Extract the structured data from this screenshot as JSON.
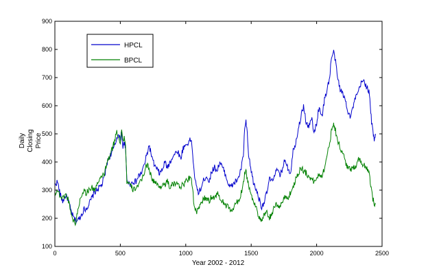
{
  "chart_data": {
    "type": "line",
    "xlabel": "Year 2002 - 2012",
    "ylabel_lines": [
      "Daily",
      "Closing",
      "Price"
    ],
    "xlim": [
      0,
      2500
    ],
    "ylim": [
      100,
      900
    ],
    "xticks": [
      0,
      500,
      1000,
      1500,
      2000,
      2500
    ],
    "yticks": [
      100,
      200,
      300,
      400,
      500,
      600,
      700,
      800,
      900
    ],
    "grid": false,
    "legend_position": "top-left",
    "series": [
      {
        "name": "HPCL",
        "color": "#0000cc",
        "points": [
          [
            0,
            320
          ],
          [
            20,
            330
          ],
          [
            40,
            285
          ],
          [
            60,
            260
          ],
          [
            80,
            280
          ],
          [
            100,
            270
          ],
          [
            120,
            230
          ],
          [
            140,
            205
          ],
          [
            160,
            190
          ],
          [
            180,
            195
          ],
          [
            200,
            210
          ],
          [
            220,
            230
          ],
          [
            240,
            235
          ],
          [
            260,
            250
          ],
          [
            280,
            270
          ],
          [
            300,
            290
          ],
          [
            320,
            300
          ],
          [
            340,
            310
          ],
          [
            360,
            320
          ],
          [
            380,
            350
          ],
          [
            400,
            400
          ],
          [
            420,
            420
          ],
          [
            440,
            440
          ],
          [
            460,
            460
          ],
          [
            470,
            480
          ],
          [
            480,
            500
          ],
          [
            500,
            480
          ],
          [
            510,
            510
          ],
          [
            520,
            450
          ],
          [
            530,
            470
          ],
          [
            540,
            440
          ],
          [
            550,
            340
          ],
          [
            570,
            320
          ],
          [
            600,
            330
          ],
          [
            620,
            330
          ],
          [
            640,
            350
          ],
          [
            660,
            360
          ],
          [
            680,
            385
          ],
          [
            700,
            420
          ],
          [
            720,
            460
          ],
          [
            730,
            440
          ],
          [
            750,
            400
          ],
          [
            770,
            380
          ],
          [
            800,
            360
          ],
          [
            820,
            370
          ],
          [
            840,
            400
          ],
          [
            860,
            380
          ],
          [
            880,
            400
          ],
          [
            900,
            420
          ],
          [
            920,
            430
          ],
          [
            940,
            440
          ],
          [
            960,
            410
          ],
          [
            980,
            450
          ],
          [
            1000,
            460
          ],
          [
            1020,
            470
          ],
          [
            1040,
            480
          ],
          [
            1050,
            450
          ],
          [
            1060,
            380
          ],
          [
            1080,
            310
          ],
          [
            1100,
            290
          ],
          [
            1120,
            310
          ],
          [
            1140,
            340
          ],
          [
            1160,
            350
          ],
          [
            1180,
            330
          ],
          [
            1200,
            370
          ],
          [
            1220,
            380
          ],
          [
            1240,
            370
          ],
          [
            1260,
            400
          ],
          [
            1280,
            380
          ],
          [
            1300,
            360
          ],
          [
            1320,
            330
          ],
          [
            1340,
            310
          ],
          [
            1360,
            320
          ],
          [
            1380,
            330
          ],
          [
            1400,
            340
          ],
          [
            1420,
            370
          ],
          [
            1440,
            420
          ],
          [
            1450,
            520
          ],
          [
            1460,
            540
          ],
          [
            1470,
            500
          ],
          [
            1480,
            420
          ],
          [
            1500,
            370
          ],
          [
            1520,
            320
          ],
          [
            1540,
            300
          ],
          [
            1560,
            270
          ],
          [
            1580,
            240
          ],
          [
            1600,
            260
          ],
          [
            1620,
            290
          ],
          [
            1640,
            340
          ],
          [
            1660,
            330
          ],
          [
            1680,
            360
          ],
          [
            1700,
            370
          ],
          [
            1720,
            350
          ],
          [
            1740,
            380
          ],
          [
            1760,
            410
          ],
          [
            1780,
            380
          ],
          [
            1800,
            360
          ],
          [
            1820,
            440
          ],
          [
            1840,
            470
          ],
          [
            1860,
            520
          ],
          [
            1880,
            560
          ],
          [
            1900,
            600
          ],
          [
            1920,
            540
          ],
          [
            1940,
            520
          ],
          [
            1960,
            560
          ],
          [
            1980,
            500
          ],
          [
            2000,
            540
          ],
          [
            2020,
            600
          ],
          [
            2040,
            560
          ],
          [
            2060,
            620
          ],
          [
            2080,
            660
          ],
          [
            2100,
            700
          ],
          [
            2110,
            760
          ],
          [
            2120,
            780
          ],
          [
            2130,
            790
          ],
          [
            2140,
            770
          ],
          [
            2160,
            700
          ],
          [
            2180,
            660
          ],
          [
            2200,
            640
          ],
          [
            2220,
            620
          ],
          [
            2240,
            580
          ],
          [
            2260,
            560
          ],
          [
            2280,
            600
          ],
          [
            2300,
            630
          ],
          [
            2320,
            650
          ],
          [
            2340,
            680
          ],
          [
            2360,
            690
          ],
          [
            2380,
            670
          ],
          [
            2400,
            650
          ],
          [
            2410,
            600
          ],
          [
            2420,
            540
          ],
          [
            2430,
            510
          ],
          [
            2440,
            480
          ],
          [
            2450,
            500
          ]
        ]
      },
      {
        "name": "BPCL",
        "color": "#008000",
        "points": [
          [
            0,
            290
          ],
          [
            20,
            300
          ],
          [
            40,
            280
          ],
          [
            60,
            270
          ],
          [
            80,
            285
          ],
          [
            100,
            270
          ],
          [
            120,
            230
          ],
          [
            140,
            190
          ],
          [
            160,
            185
          ],
          [
            180,
            240
          ],
          [
            200,
            280
          ],
          [
            220,
            300
          ],
          [
            240,
            290
          ],
          [
            260,
            300
          ],
          [
            280,
            310
          ],
          [
            300,
            300
          ],
          [
            320,
            320
          ],
          [
            340,
            330
          ],
          [
            360,
            350
          ],
          [
            380,
            360
          ],
          [
            400,
            400
          ],
          [
            420,
            420
          ],
          [
            440,
            450
          ],
          [
            460,
            480
          ],
          [
            470,
            510
          ],
          [
            480,
            500
          ],
          [
            500,
            470
          ],
          [
            510,
            520
          ],
          [
            520,
            470
          ],
          [
            530,
            490
          ],
          [
            540,
            460
          ],
          [
            550,
            330
          ],
          [
            570,
            320
          ],
          [
            600,
            300
          ],
          [
            620,
            310
          ],
          [
            640,
            320
          ],
          [
            660,
            330
          ],
          [
            680,
            360
          ],
          [
            700,
            390
          ],
          [
            720,
            380
          ],
          [
            740,
            340
          ],
          [
            760,
            330
          ],
          [
            780,
            320
          ],
          [
            800,
            310
          ],
          [
            820,
            320
          ],
          [
            840,
            320
          ],
          [
            860,
            330
          ],
          [
            880,
            310
          ],
          [
            900,
            320
          ],
          [
            920,
            320
          ],
          [
            940,
            330
          ],
          [
            960,
            310
          ],
          [
            980,
            320
          ],
          [
            1000,
            330
          ],
          [
            1020,
            340
          ],
          [
            1040,
            350
          ],
          [
            1050,
            320
          ],
          [
            1060,
            260
          ],
          [
            1080,
            220
          ],
          [
            1100,
            230
          ],
          [
            1120,
            260
          ],
          [
            1140,
            270
          ],
          [
            1160,
            270
          ],
          [
            1180,
            260
          ],
          [
            1200,
            280
          ],
          [
            1220,
            270
          ],
          [
            1240,
            290
          ],
          [
            1260,
            270
          ],
          [
            1280,
            260
          ],
          [
            1300,
            250
          ],
          [
            1320,
            240
          ],
          [
            1340,
            230
          ],
          [
            1360,
            230
          ],
          [
            1380,
            250
          ],
          [
            1400,
            260
          ],
          [
            1420,
            280
          ],
          [
            1440,
            330
          ],
          [
            1450,
            360
          ],
          [
            1460,
            370
          ],
          [
            1470,
            340
          ],
          [
            1480,
            320
          ],
          [
            1500,
            280
          ],
          [
            1520,
            260
          ],
          [
            1540,
            240
          ],
          [
            1560,
            200
          ],
          [
            1580,
            190
          ],
          [
            1600,
            210
          ],
          [
            1620,
            220
          ],
          [
            1640,
            200
          ],
          [
            1660,
            220
          ],
          [
            1680,
            240
          ],
          [
            1700,
            250
          ],
          [
            1720,
            240
          ],
          [
            1740,
            260
          ],
          [
            1760,
            280
          ],
          [
            1780,
            270
          ],
          [
            1800,
            290
          ],
          [
            1820,
            310
          ],
          [
            1840,
            340
          ],
          [
            1860,
            360
          ],
          [
            1880,
            380
          ],
          [
            1900,
            370
          ],
          [
            1920,
            360
          ],
          [
            1940,
            350
          ],
          [
            1960,
            340
          ],
          [
            1980,
            330
          ],
          [
            2000,
            340
          ],
          [
            2020,
            360
          ],
          [
            2040,
            350
          ],
          [
            2060,
            380
          ],
          [
            2080,
            420
          ],
          [
            2100,
            470
          ],
          [
            2110,
            500
          ],
          [
            2120,
            530
          ],
          [
            2130,
            540
          ],
          [
            2140,
            520
          ],
          [
            2160,
            480
          ],
          [
            2180,
            450
          ],
          [
            2200,
            430
          ],
          [
            2220,
            400
          ],
          [
            2240,
            380
          ],
          [
            2260,
            370
          ],
          [
            2280,
            380
          ],
          [
            2300,
            390
          ],
          [
            2320,
            410
          ],
          [
            2340,
            400
          ],
          [
            2360,
            390
          ],
          [
            2380,
            380
          ],
          [
            2400,
            370
          ],
          [
            2410,
            330
          ],
          [
            2420,
            300
          ],
          [
            2430,
            270
          ],
          [
            2440,
            250
          ],
          [
            2450,
            250
          ]
        ]
      }
    ]
  }
}
